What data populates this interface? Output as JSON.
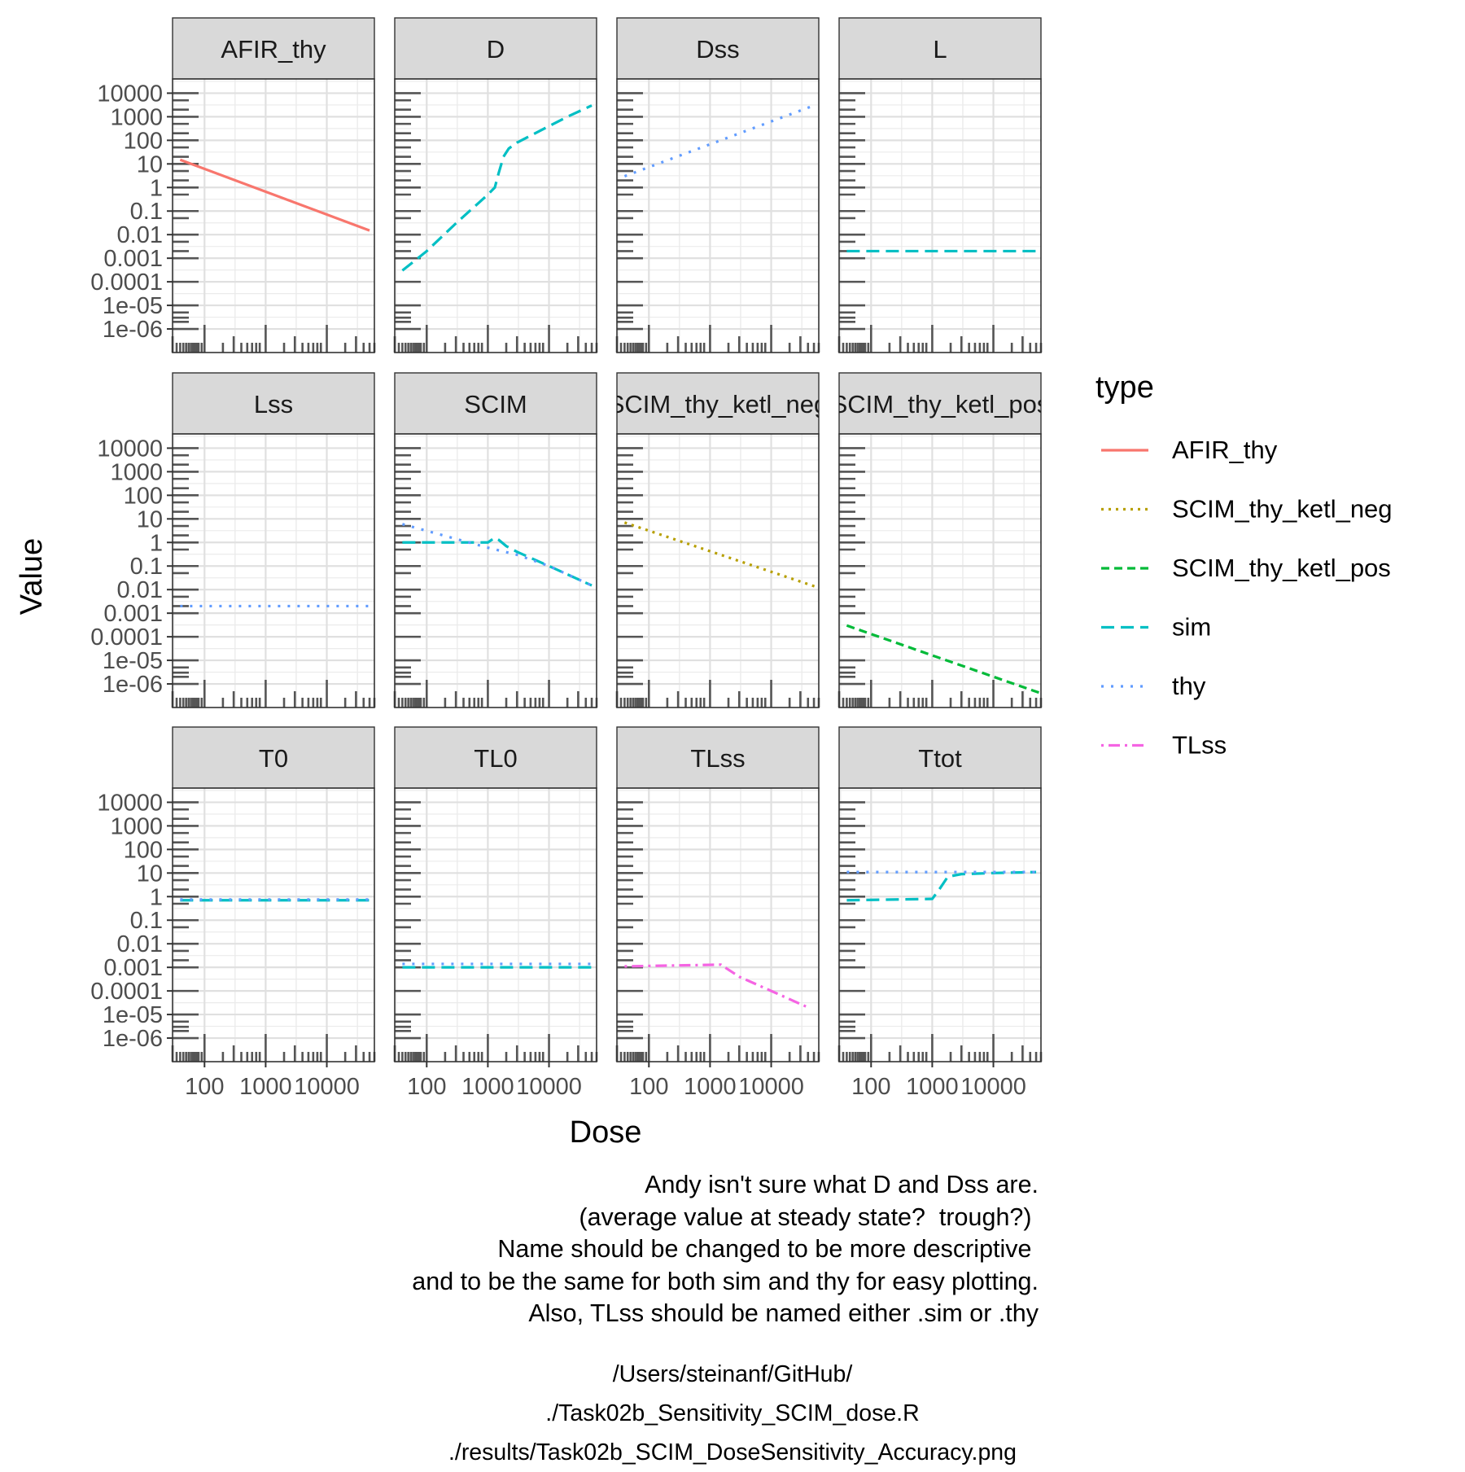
{
  "chart_data": {
    "type": "line",
    "facet_layout": "wrap 3 rows x 4 columns, shared axes",
    "x_scale": "log10",
    "y_scale": "log10",
    "xlabel": "Dose",
    "ylabel": "Value",
    "xlim": [
      30,
      60000
    ],
    "ylim": [
      1e-07,
      40000
    ],
    "x_ticks": [
      "100",
      "1000",
      "10000"
    ],
    "y_ticks": [
      "1e-06",
      "1e-05",
      "0.0001",
      "0.001",
      "0.01",
      "0.1",
      "1",
      "10",
      "100",
      "1000",
      "10000"
    ],
    "rug_x": [
      30,
      35,
      40,
      45,
      50,
      55,
      60,
      65,
      70,
      75,
      80,
      90,
      100,
      200,
      300,
      400,
      500,
      600,
      700,
      800,
      1000,
      2000,
      3000,
      4000,
      5000,
      6000,
      7000,
      8000,
      10000,
      20000,
      30000,
      40000,
      50000,
      60000
    ],
    "rug_y": [
      1e-06,
      2e-06,
      3e-06,
      5e-06,
      1e-05,
      0.0001,
      0.001,
      0.002,
      0.005,
      0.01,
      0.05,
      0.1,
      0.5,
      1,
      2,
      5,
      10,
      20,
      50,
      100,
      200,
      500,
      1000,
      2000,
      5000,
      10000
    ],
    "grid": true,
    "legend": {
      "title": "type",
      "position": "right",
      "entries": [
        {
          "name": "AFIR_thy",
          "color": "#F8766D",
          "dash": "solid"
        },
        {
          "name": "SCIM_thy_ketl_neg",
          "color": "#B79F00",
          "dash": "dotted"
        },
        {
          "name": "SCIM_thy_ketl_pos",
          "color": "#00BA38",
          "dash": "dashed"
        },
        {
          "name": "sim",
          "color": "#00BFC4",
          "dash": "longdash"
        },
        {
          "name": "thy",
          "color": "#619CFF",
          "dash": "dotted-wide"
        },
        {
          "name": "TLss",
          "color": "#F564E3",
          "dash": "dotdash"
        }
      ]
    },
    "panels": [
      {
        "title": "AFIR_thy",
        "series": [
          {
            "type": "AFIR_thy",
            "points": [
              [
                40,
                15
              ],
              [
                50000,
                0.015
              ]
            ]
          }
        ]
      },
      {
        "title": "D",
        "series": [
          {
            "type": "sim",
            "points": [
              [
                40,
                0.0003
              ],
              [
                100,
                0.002
              ],
              [
                300,
                0.03
              ],
              [
                1000,
                0.5
              ],
              [
                1300,
                1.0
              ],
              [
                1500,
                4
              ],
              [
                1800,
                20
              ],
              [
                2200,
                45
              ],
              [
                3000,
                80
              ],
              [
                10000,
                400
              ],
              [
                20000,
                1000
              ],
              [
                50000,
                3000
              ]
            ]
          }
        ]
      },
      {
        "title": "Dss",
        "series": [
          {
            "type": "thy",
            "points": [
              [
                40,
                3
              ],
              [
                50000,
                3000
              ]
            ]
          }
        ]
      },
      {
        "title": "L",
        "series": [
          {
            "type": "sim",
            "points": [
              [
                40,
                0.002
              ],
              [
                60000,
                0.002
              ]
            ]
          }
        ]
      },
      {
        "title": "Lss",
        "series": [
          {
            "type": "thy",
            "points": [
              [
                40,
                0.002
              ],
              [
                50000,
                0.002
              ]
            ]
          }
        ]
      },
      {
        "title": "SCIM",
        "series": [
          {
            "type": "sim",
            "points": [
              [
                40,
                1
              ],
              [
                1000,
                1
              ],
              [
                1300,
                1.6
              ],
              [
                1500,
                1.3
              ],
              [
                2000,
                0.7
              ],
              [
                3000,
                0.4
              ],
              [
                10000,
                0.1
              ],
              [
                50000,
                0.015
              ]
            ]
          },
          {
            "type": "thy",
            "points": [
              [
                40,
                6
              ],
              [
                1000,
                0.6
              ],
              [
                3000,
                0.3
              ],
              [
                10000,
                0.1
              ],
              [
                50000,
                0.015
              ]
            ]
          }
        ]
      },
      {
        "title": "SCIM_thy_ketl_neg",
        "series": [
          {
            "type": "SCIM_thy_ketl_neg",
            "points": [
              [
                40,
                7
              ],
              [
                60000,
                0.012
              ]
            ]
          }
        ]
      },
      {
        "title": "SCIM_thy_ketl_pos",
        "series": [
          {
            "type": "SCIM_thy_ketl_pos",
            "points": [
              [
                40,
                0.0003
              ],
              [
                60000,
                4e-07
              ]
            ]
          }
        ]
      },
      {
        "title": "T0",
        "series": [
          {
            "type": "sim",
            "points": [
              [
                40,
                0.7
              ],
              [
                50000,
                0.7
              ]
            ]
          },
          {
            "type": "thy",
            "points": [
              [
                40,
                0.75
              ],
              [
                50000,
                0.75
              ]
            ]
          }
        ]
      },
      {
        "title": "TL0",
        "series": [
          {
            "type": "sim",
            "points": [
              [
                40,
                0.001
              ],
              [
                50000,
                0.001
              ]
            ]
          },
          {
            "type": "thy",
            "points": [
              [
                40,
                0.0014
              ],
              [
                50000,
                0.0014
              ]
            ]
          }
        ]
      },
      {
        "title": "TLss",
        "series": [
          {
            "type": "TLss",
            "points": [
              [
                40,
                0.0011
              ],
              [
                1500,
                0.0013
              ],
              [
                3000,
                0.0004
              ],
              [
                10000,
                0.0001
              ],
              [
                40000,
                2e-05
              ]
            ]
          }
        ]
      },
      {
        "title": "Ttot",
        "series": [
          {
            "type": "sim",
            "points": [
              [
                40,
                0.7
              ],
              [
                1000,
                0.8
              ],
              [
                1300,
                2
              ],
              [
                1800,
                7
              ],
              [
                3000,
                9
              ],
              [
                10000,
                10
              ],
              [
                50000,
                11
              ]
            ]
          },
          {
            "type": "thy",
            "points": [
              [
                40,
                11
              ],
              [
                60000,
                11
              ]
            ]
          }
        ]
      }
    ]
  },
  "caption": [
    "Andy isn't sure what D and Dss are.",
    "(average value at steady state?  trough?) ",
    "Name should be changed to be more descriptive ",
    "and to be the same for both sim and thy for easy plotting.",
    "Also, TLss should be named either .sim or .thy"
  ],
  "source": [
    "/Users/steinanf/GitHub/",
    "./Task02b_Sensitivity_SCIM_dose.R",
    "./results/Task02b_SCIM_DoseSensitivity_Accuracy.png"
  ]
}
